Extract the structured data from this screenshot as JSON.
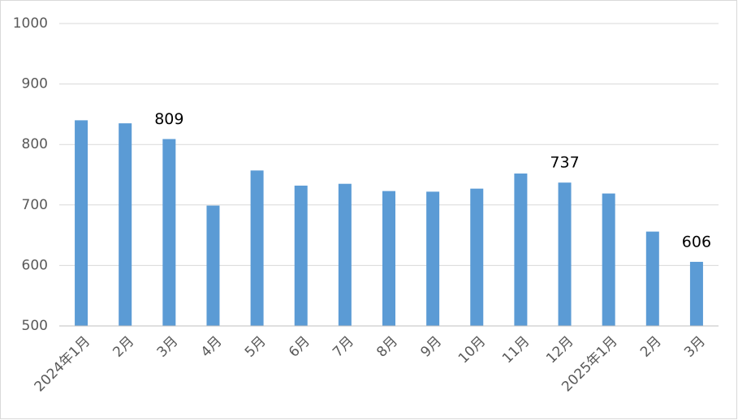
{
  "chart_data": {
    "type": "bar",
    "categories": [
      "2024年1月",
      "2月",
      "3月",
      "4月",
      "5月",
      "6月",
      "7月",
      "8月",
      "9月",
      "10月",
      "11月",
      "12月",
      "2025年1月",
      "2月",
      "3月"
    ],
    "values": [
      840,
      835,
      809,
      699,
      757,
      732,
      735,
      723,
      722,
      727,
      752,
      737,
      719,
      656,
      606
    ],
    "value_labels": [
      null,
      null,
      "809",
      null,
      null,
      null,
      null,
      null,
      null,
      null,
      null,
      "737",
      null,
      null,
      "606"
    ],
    "color": "#5b9bd5",
    "ylim": [
      500,
      1000
    ],
    "yticks": [
      500,
      600,
      700,
      800,
      900,
      1000
    ],
    "grid": true
  }
}
